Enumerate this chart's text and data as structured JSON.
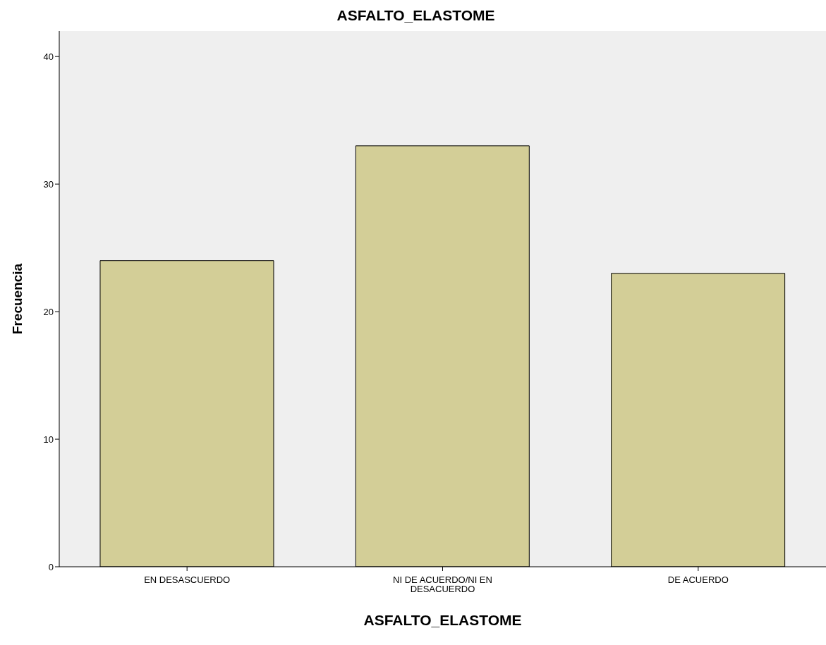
{
  "chart_data": {
    "type": "bar",
    "title": "ASFALTO_ELASTOME",
    "xlabel": "ASFALTO_ELASTOME",
    "ylabel": "Frecuencia",
    "categories": [
      "EN DESASCUERDO",
      "NI DE ACUERDO/NI EN DESACUERDO",
      "DE ACUERDO"
    ],
    "values": [
      24,
      33,
      23
    ],
    "color": "#d3ce97",
    "ylim": [
      0,
      42
    ],
    "yticks": [
      0,
      10,
      20,
      30,
      40
    ],
    "grid": false,
    "legend": false
  }
}
